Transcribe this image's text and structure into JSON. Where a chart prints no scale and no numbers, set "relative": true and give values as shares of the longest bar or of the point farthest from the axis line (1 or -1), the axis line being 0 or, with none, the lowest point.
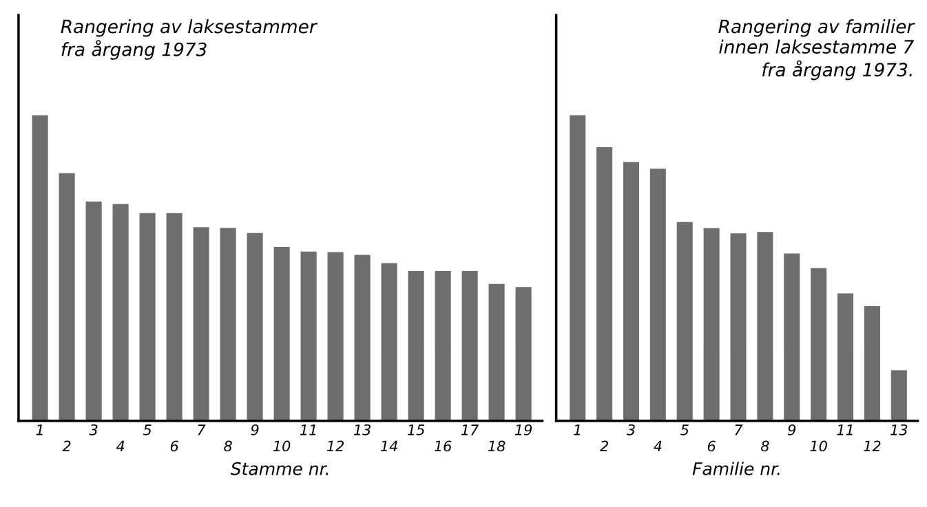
{
  "chart_data": [
    {
      "type": "bar",
      "relative": true,
      "title": "Rangering av laksestammer\nfra årgang 1973",
      "xlabel": "Stamme nr.",
      "categories": [
        "1",
        "2",
        "3",
        "4",
        "5",
        "6",
        "7",
        "8",
        "9",
        "10",
        "11",
        "12",
        "13",
        "14",
        "15",
        "16",
        "17",
        "18",
        "19"
      ],
      "values": [
        1,
        0.81,
        0.717,
        0.709,
        0.679,
        0.679,
        0.633,
        0.631,
        0.614,
        0.568,
        0.553,
        0.551,
        0.542,
        0.515,
        0.489,
        0.489,
        0.489,
        0.447,
        0.437
      ],
      "color": "#6e6e6e",
      "grid": false,
      "legend": false
    },
    {
      "type": "bar",
      "relative": true,
      "title": "Rangering av familier\ninnen laksestamme 7\nfra årgang 1973.",
      "xlabel": "Familie nr.",
      "categories": [
        "1",
        "2",
        "3",
        "4",
        "5",
        "6",
        "7",
        "8",
        "9",
        "10",
        "11",
        "12",
        "13"
      ],
      "values": [
        1,
        0.895,
        0.847,
        0.825,
        0.65,
        0.63,
        0.613,
        0.617,
        0.547,
        0.499,
        0.416,
        0.374,
        0.164
      ],
      "color": "#6e6e6e",
      "grid": false,
      "legend": false
    }
  ]
}
